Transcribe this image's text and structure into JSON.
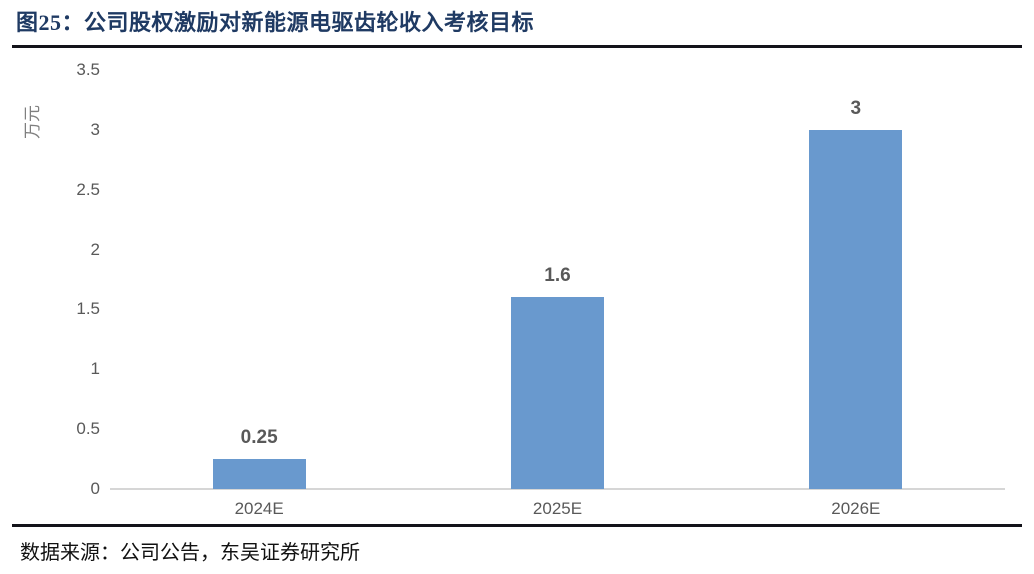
{
  "figure": {
    "title": "图25：公司股权激励对新能源电驱齿轮收入考核目标",
    "source": "数据来源：公司公告，东吴证券研究所"
  },
  "chart_data": {
    "type": "bar",
    "title": "图25：公司股权激励对新能源电驱齿轮收入考核目标",
    "categories": [
      "2024E",
      "2025E",
      "2026E"
    ],
    "values": [
      0.25,
      1.6,
      3
    ],
    "data_labels": [
      "0.25",
      "1.6",
      "3"
    ],
    "xlabel": "",
    "ylabel": "万元",
    "ylim": [
      0,
      3.5
    ],
    "yticks": [
      "0",
      "0.5",
      "1",
      "1.5",
      "2",
      "2.5",
      "3",
      "3.5"
    ],
    "grid": false,
    "legend": false,
    "bar_color": "#6999CE"
  },
  "colors": {
    "title_text": "#1F3A63",
    "rule": "#13131A",
    "bar": "#6999CE",
    "axis_text": "#595959",
    "value_label_text": "#595959",
    "unit_label_text": "#7F7F7F",
    "baseline": "#D6D6D6",
    "source_text": "#111111"
  }
}
